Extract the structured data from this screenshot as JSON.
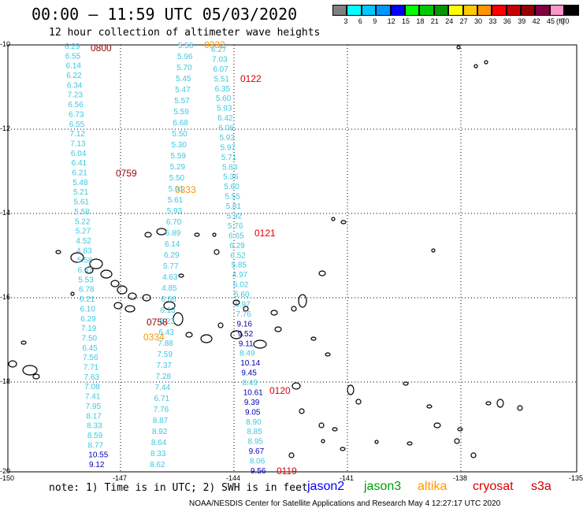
{
  "header": {
    "title": "00:00 – 11:59 UTC 05/03/2020",
    "subtitle": "12 hour collection of altimeter wave heights"
  },
  "legend": {
    "colors": [
      "#808080",
      "#00ffff",
      "#00c8ff",
      "#0096ff",
      "#0000ff",
      "#00ff00",
      "#00c800",
      "#009600",
      "#ffff00",
      "#ffc800",
      "#ff9600",
      "#ff0000",
      "#c80000",
      "#960000",
      "#800040",
      "#ff96c8",
      "#000000"
    ],
    "labels": [
      "3",
      "6",
      "9",
      "12",
      "15",
      "18",
      "21",
      "24",
      "27",
      "30",
      "33",
      "36",
      "39",
      "42",
      "45",
      "70",
      "(ft)"
    ]
  },
  "map": {
    "lat_labels": [
      "-10",
      "-12",
      "-14",
      "-16",
      "-18",
      "-20"
    ],
    "lon_labels": [
      "-150",
      "-147",
      "-144",
      "-141",
      "-138",
      "-135"
    ],
    "color_cyan": "#3cc8e0",
    "color_blue": "#0000b4",
    "color_orange": "#ff9600",
    "color_red": "#e00000",
    "color_darkred": "#960000",
    "color_green": "#00a000"
  },
  "track_a": {
    "values": [
      "6.29",
      "6.55",
      "6.14",
      "6.22",
      "6.34",
      "7.23",
      "6.56",
      "6.73",
      "6.55",
      "7.12",
      "7.13",
      "6.04",
      "6.41",
      "6.21",
      "5.48",
      "5.21",
      "5.61",
      "5.58",
      "5.22",
      "5.27",
      "4.52",
      "4.83",
      "5.58",
      "6.47",
      "5.53",
      "6.78",
      "6.21",
      "6.10",
      "6.29",
      "7.19",
      "7.50",
      "6.45",
      "7.56",
      "7.71",
      "7.63",
      "7.08",
      "7.41",
      "7.95",
      "8.17",
      "8.33",
      "8.59",
      "8.77",
      "10.55",
      "9.12"
    ],
    "time_label": "0800",
    "mid_time_label": "0759"
  },
  "track_b": {
    "values": [
      "5.56",
      "5.96",
      "5.70",
      "5.45",
      "5.47",
      "5.57",
      "5.59",
      "6.68",
      "5.50",
      "5.30",
      "5.59",
      "5.29",
      "5.50",
      "5.91",
      "5.61",
      "5.93",
      "6.70",
      "6.89",
      "6.14",
      "6.29",
      "5.77",
      "4.63",
      "4.85",
      "6.66",
      "6.13",
      "6.23",
      "6.43",
      "7.88",
      "7.59",
      "7.37",
      "7.28",
      "7.44",
      "6.71",
      "7.76",
      "8.87",
      "8.92",
      "8.64",
      "8.33",
      "8.62"
    ],
    "time_label_top": "0332",
    "time_label_mid": "0333",
    "time_label_low": "0334",
    "extra_label": "0758"
  },
  "track_c": {
    "values": [
      "6.27",
      "7.03",
      "6.07",
      "5.51",
      "6.35",
      "5.60",
      "5.93",
      "6.42",
      "6.06",
      "5.93",
      "5.97",
      "5.71",
      "5.83",
      "5.36",
      "5.60",
      "5.55",
      "5.81",
      "5.92",
      "5.76",
      "6.65",
      "6.29",
      "6.52",
      "5.85",
      "4.97",
      "5.02",
      "5.60",
      "5.97",
      "7.76",
      "9.16",
      "9.52",
      "9.11",
      "8.49",
      "10.14",
      "9.45",
      "8.49",
      "10.61",
      "9.39",
      "9.05",
      "8.90",
      "8.85",
      "8.95",
      "9.67",
      "8.06",
      "9.56"
    ],
    "time_labels": [
      "0122",
      "0121",
      "0120",
      "0119"
    ]
  },
  "footer": {
    "note": "note: 1) Time is in UTC; 2) SWH is in feet",
    "sat_jason2": "jason2",
    "sat_jason3": "jason3",
    "sat_altika": "altika",
    "sat_cryosat": "cryosat",
    "sat_s3a": "s3a",
    "credit": "NOAA/NESDIS Center for Satellite Applications and Research   May  4 12:27:17 UTC 2020"
  }
}
